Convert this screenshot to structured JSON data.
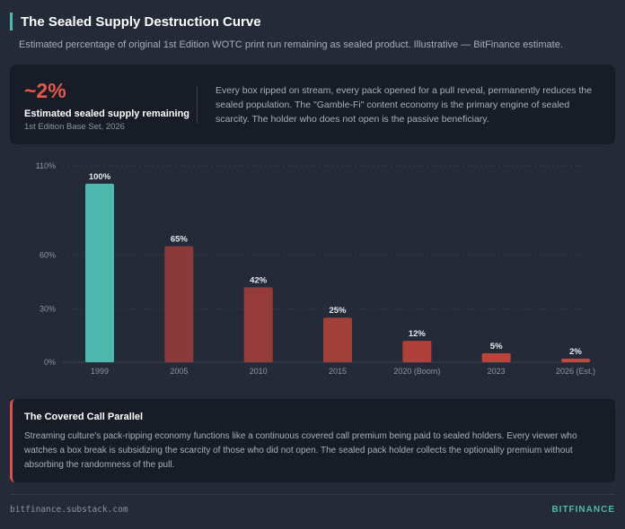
{
  "header": {
    "title": "The Sealed Supply Destruction Curve",
    "subtitle": "Estimated percentage of original 1st Edition WOTC print run remaining as sealed product. Illustrative — BitFinance estimate."
  },
  "stat": {
    "value": "~2%",
    "label": "Estimated sealed supply remaining",
    "sub": "1st Edition Base Set, 2026",
    "description": "Every box ripped on stream, every pack opened for a pull reveal, permanently reduces the sealed population. The \"Gamble-Fi\" content economy is the primary engine of sealed scarcity. The holder who does not open is the passive beneficiary."
  },
  "chart_data": {
    "type": "bar",
    "title": "",
    "xlabel": "",
    "ylabel": "",
    "categories": [
      "1999",
      "2005",
      "2010",
      "2015",
      "2020 (Boom)",
      "2023",
      "2026 (Est.)"
    ],
    "values": [
      100,
      65,
      42,
      25,
      12,
      5,
      2
    ],
    "value_labels": [
      "100%",
      "65%",
      "42%",
      "25%",
      "12%",
      "5%",
      "2%"
    ],
    "yticks": [
      0,
      30,
      60,
      110
    ],
    "ytick_labels": [
      "0%",
      "30%",
      "60%",
      "110%"
    ],
    "ylim": [
      0,
      110
    ],
    "colors": [
      "#4fb8ae",
      "#8b3a3c",
      "#953c3b",
      "#a13f3b",
      "#b0413a",
      "#bc433a",
      "#c7453a"
    ],
    "grid": true
  },
  "callout": {
    "title": "The Covered Call Parallel",
    "body": "Streaming culture's pack-ripping economy functions like a continuous covered call premium being paid to sealed holders. Every viewer who watches a box break is subsidizing the scarcity of those who did not open. The sealed pack holder collects the optionality premium without absorbing the randomness of the pull."
  },
  "footer": {
    "source": "bitfinance.substack.com",
    "brand": "BITFINANCE"
  }
}
